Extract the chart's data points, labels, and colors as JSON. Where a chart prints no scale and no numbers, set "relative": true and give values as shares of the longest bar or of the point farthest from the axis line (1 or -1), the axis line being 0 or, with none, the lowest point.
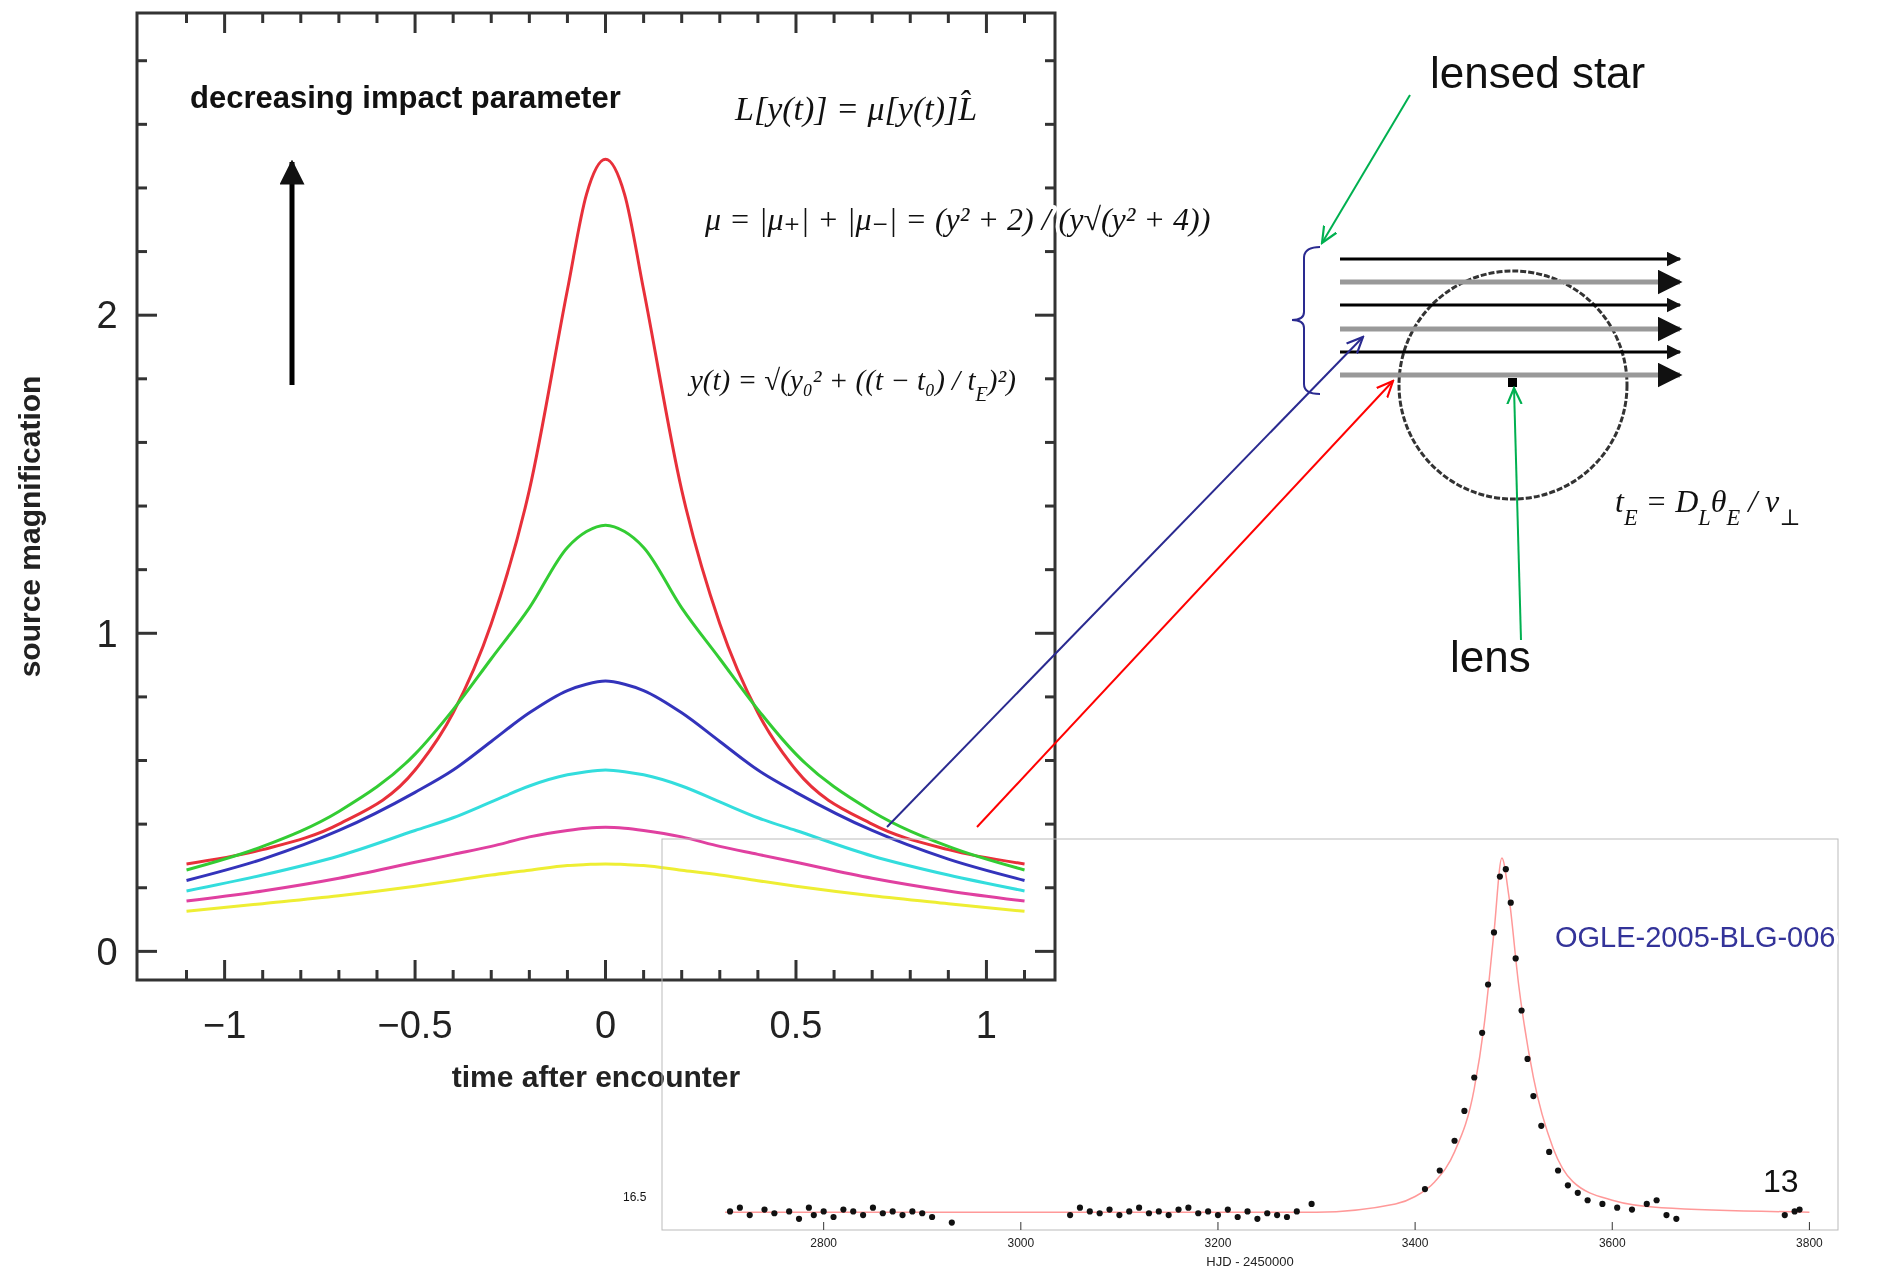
{
  "chart_data": [
    {
      "type": "line",
      "xlabel": "time after encounter",
      "ylabel": "source magnification",
      "x": [
        -1.1,
        -0.9,
        -0.7,
        -0.5,
        -0.4,
        -0.3,
        -0.2,
        -0.1,
        -0.05,
        0,
        0.05,
        0.1,
        0.2,
        0.3,
        0.4,
        0.5,
        0.7,
        0.9,
        1.1
      ],
      "series": [
        {
          "color": "#e8303a",
          "values": [
            0.275,
            0.32,
            0.4,
            0.57,
            0.75,
            1.03,
            1.45,
            2.08,
            2.38,
            2.49,
            2.38,
            2.08,
            1.45,
            1.03,
            0.75,
            0.57,
            0.4,
            0.32,
            0.275
          ]
        },
        {
          "color": "#33cc33",
          "values": [
            0.256,
            0.33,
            0.44,
            0.62,
            0.76,
            0.92,
            1.08,
            1.27,
            1.32,
            1.34,
            1.32,
            1.27,
            1.08,
            0.92,
            0.76,
            0.62,
            0.44,
            0.33,
            0.256
          ]
        },
        {
          "color": "#3333bb",
          "values": [
            0.223,
            0.29,
            0.38,
            0.5,
            0.57,
            0.66,
            0.75,
            0.82,
            0.84,
            0.85,
            0.84,
            0.82,
            0.75,
            0.66,
            0.57,
            0.5,
            0.38,
            0.29,
            0.223
          ]
        },
        {
          "color": "#33dddd",
          "values": [
            0.19,
            0.24,
            0.3,
            0.38,
            0.42,
            0.47,
            0.52,
            0.555,
            0.565,
            0.57,
            0.565,
            0.555,
            0.52,
            0.47,
            0.42,
            0.38,
            0.3,
            0.24,
            0.19
          ]
        },
        {
          "color": "#e040a0",
          "values": [
            0.158,
            0.19,
            0.23,
            0.28,
            0.305,
            0.33,
            0.36,
            0.38,
            0.387,
            0.39,
            0.387,
            0.38,
            0.36,
            0.33,
            0.305,
            0.28,
            0.23,
            0.19,
            0.158
          ]
        },
        {
          "color": "#eeee33",
          "values": [
            0.126,
            0.15,
            0.175,
            0.205,
            0.222,
            0.24,
            0.255,
            0.27,
            0.273,
            0.275,
            0.273,
            0.27,
            0.255,
            0.24,
            0.222,
            0.205,
            0.175,
            0.15,
            0.126
          ]
        }
      ],
      "xlim": [
        -1.23,
        1.18
      ],
      "ylim": [
        -0.09,
        2.95
      ],
      "xticks": [
        {
          "value": -1.1,
          "label": null
        },
        -1,
        {
          "value": -0.9,
          "label": null
        },
        {
          "value": -0.8,
          "label": null
        },
        {
          "value": -0.7,
          "label": null
        },
        {
          "value": -0.6,
          "label": null
        },
        -0.5,
        {
          "value": -0.4,
          "label": null
        },
        {
          "value": -0.3,
          "label": null
        },
        {
          "value": -0.2,
          "label": null
        },
        {
          "value": -0.1,
          "label": null
        },
        0,
        {
          "value": 0.1,
          "label": null
        },
        {
          "value": 0.2,
          "label": null
        },
        {
          "value": 0.3,
          "label": null
        },
        {
          "value": 0.4,
          "label": null
        },
        0.5,
        {
          "value": 0.6,
          "label": null
        },
        {
          "value": 0.7,
          "label": null
        },
        {
          "value": 0.8,
          "label": null
        },
        {
          "value": 0.9,
          "label": null
        },
        1,
        {
          "value": 1.1,
          "label": null
        }
      ],
      "yticks": [
        0,
        {
          "value": 0.2,
          "label": null
        },
        {
          "value": 0.4,
          "label": null
        },
        {
          "value": 0.6,
          "label": null
        },
        {
          "value": 0.8,
          "label": null
        },
        1,
        {
          "value": 1.2,
          "label": null
        },
        {
          "value": 1.4,
          "label": null
        },
        {
          "value": 1.6,
          "label": null
        },
        {
          "value": 1.8,
          "label": null
        },
        2,
        {
          "value": 2.2,
          "label": null
        },
        {
          "value": 2.4,
          "label": null
        },
        {
          "value": 2.6,
          "label": null
        },
        {
          "value": 2.8,
          "label": null
        }
      ],
      "marker": "none",
      "annotations": [
        "decreasing impact parameter",
        "L[y(t)] = μ[y(t)]L̂",
        "μ = |μ₊| + |μ₋| = (y² + 2) / (y√(y² + 4))",
        "y(t) = √(y₀² + ((t − t₀) / t$_{E}$)²)",
        "lensed star",
        "lens",
        "t$_{E}$ = D$_{L}$θ$_{E}$ / v$_{⊥}$"
      ]
    },
    {
      "type": "line",
      "relative": true,
      "xlabel": "HJD - 2450000",
      "xlim": [
        2636,
        3829
      ],
      "xticks": [
        2800,
        3000,
        3200,
        3400,
        3600,
        3800
      ],
      "series": [
        {
          "color": "#ff9999",
          "x": [
            2700,
            3300,
            3380,
            3400,
            3420,
            3440,
            3460,
            3470,
            3480,
            3488,
            3495,
            3505,
            3520,
            3540,
            3560,
            3600,
            3650,
            3800
          ],
          "values": [
            0.048,
            0.048,
            0.07,
            0.09,
            0.13,
            0.21,
            0.38,
            0.55,
            0.8,
            1,
            0.9,
            0.66,
            0.41,
            0.22,
            0.13,
            0.08,
            0.06,
            0.048
          ]
        },
        {
          "type": "scatter",
          "color": "#111111",
          "marker": "circle",
          "x": [
            2705,
            2715,
            2725,
            2740,
            2750,
            2765,
            2775,
            2785,
            2790,
            2800,
            2810,
            2820,
            2830,
            2840,
            2850,
            2860,
            2870,
            2880,
            2890,
            2900,
            2910,
            2930,
            3050,
            3060,
            3070,
            3080,
            3090,
            3100,
            3110,
            3120,
            3130,
            3140,
            3150,
            3160,
            3170,
            3180,
            3190,
            3200,
            3210,
            3220,
            3230,
            3240,
            3250,
            3260,
            3270,
            3280,
            3295,
            3410,
            3425,
            3440,
            3450,
            3460,
            3468,
            3474,
            3480,
            3486,
            3492,
            3497,
            3502,
            3508,
            3514,
            3520,
            3528,
            3536,
            3545,
            3555,
            3565,
            3575,
            3590,
            3605,
            3620,
            3635,
            3645,
            3655,
            3665,
            3775,
            3785,
            3790
          ],
          "values": [
            0.05,
            0.06,
            0.04,
            0.055,
            0.045,
            0.05,
            0.03,
            0.06,
            0.04,
            0.05,
            0.035,
            0.055,
            0.05,
            0.04,
            0.06,
            0.045,
            0.05,
            0.04,
            0.05,
            0.045,
            0.035,
            0.02,
            0.04,
            0.06,
            0.05,
            0.045,
            0.055,
            0.04,
            0.05,
            0.06,
            0.045,
            0.05,
            0.04,
            0.055,
            0.06,
            0.045,
            0.05,
            0.04,
            0.055,
            0.035,
            0.05,
            0.03,
            0.045,
            0.04,
            0.035,
            0.05,
            0.07,
            0.11,
            0.16,
            0.24,
            0.32,
            0.41,
            0.53,
            0.66,
            0.8,
            0.95,
            0.97,
            0.88,
            0.73,
            0.59,
            0.46,
            0.36,
            0.28,
            0.21,
            0.16,
            0.12,
            0.1,
            0.08,
            0.07,
            0.06,
            0.055,
            0.07,
            0.08,
            0.04,
            0.03,
            0.04,
            0.05,
            0.055
          ]
        }
      ],
      "annotations": [
        "OGLE-2005-BLG-006",
        "16.5",
        "13"
      ]
    }
  ]
}
